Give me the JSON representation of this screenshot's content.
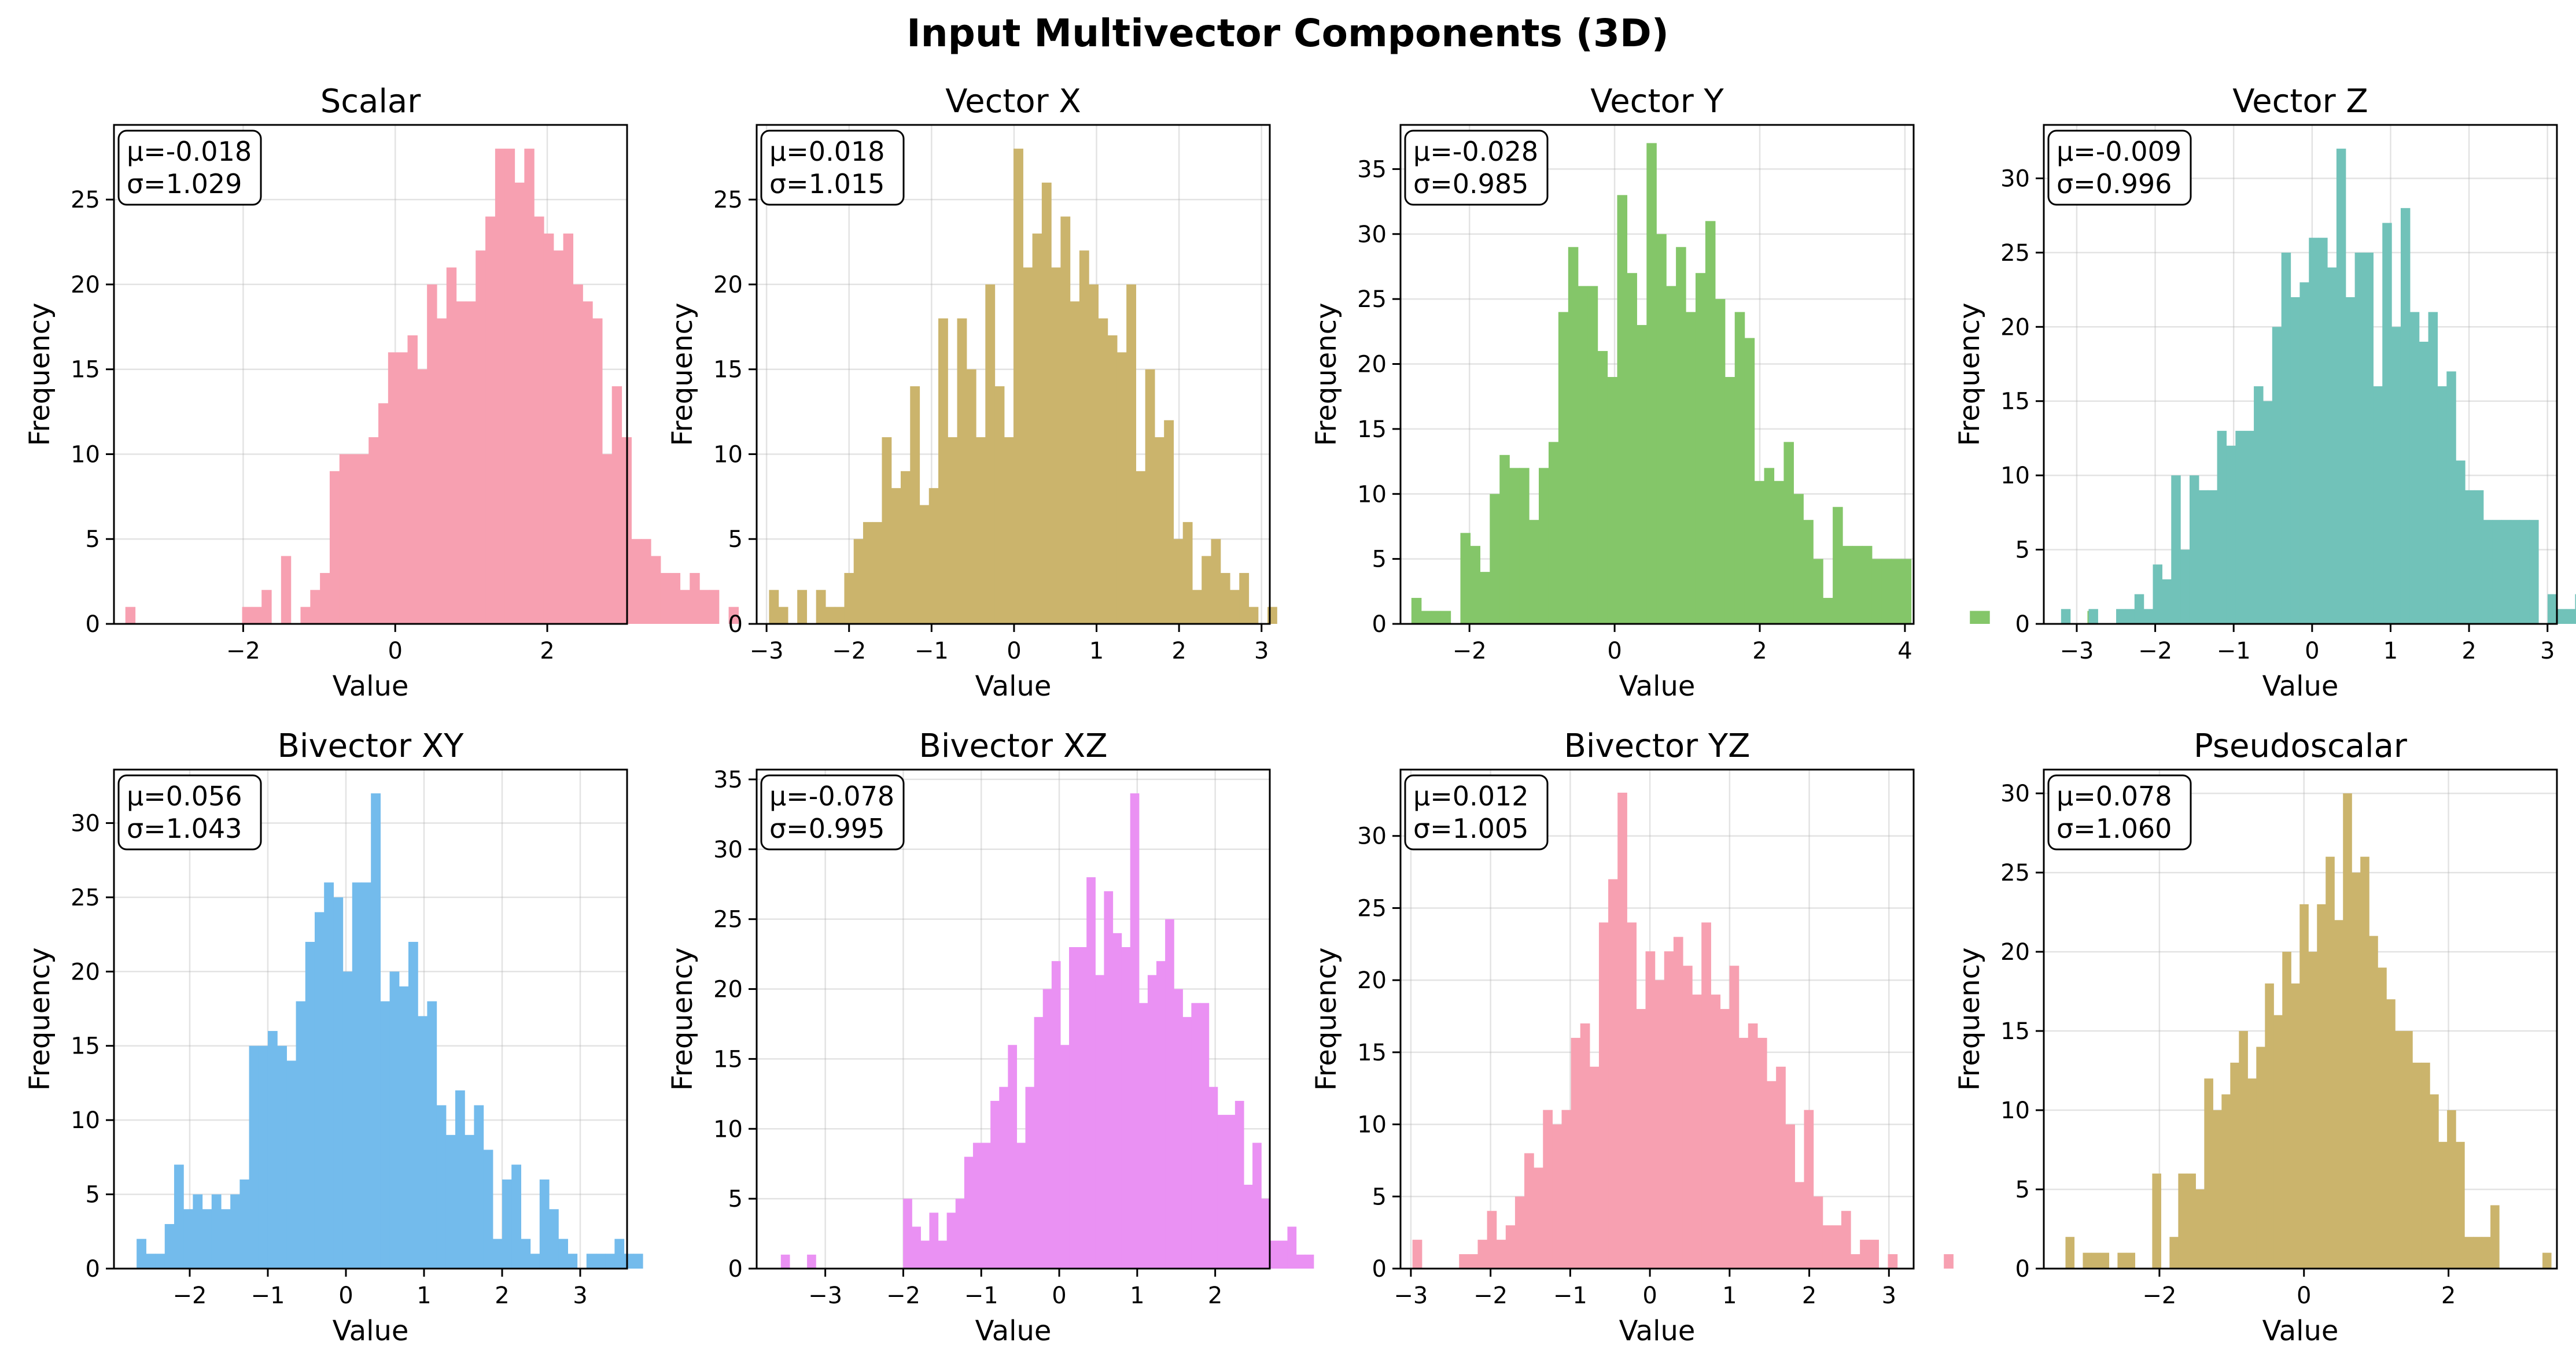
{
  "figure_title": "Input Multivector Components (3D)",
  "chart_data": [
    {
      "type": "bar",
      "title": "Scalar",
      "xlabel": "Value",
      "ylabel": "Frequency",
      "color": "#f7a0b1",
      "stats": {
        "mean": "μ=-0.018",
        "std": "σ=1.029"
      },
      "xlim": [
        -3.7,
        3.05
      ],
      "ylim": [
        0,
        29.4
      ],
      "xticks": [
        -2,
        0,
        2
      ],
      "yticks": [
        0,
        5,
        10,
        15,
        20,
        25
      ],
      "bin_start": -3.55,
      "bin_width": 0.128,
      "values": [
        1,
        0,
        0,
        0,
        0,
        0,
        0,
        0,
        0,
        0,
        0,
        0,
        1,
        1,
        2,
        0,
        4,
        0,
        1,
        2,
        3,
        9,
        10,
        10,
        10,
        11,
        13,
        16,
        16,
        17,
        15,
        20,
        18,
        21,
        19,
        19,
        22,
        24,
        28,
        28,
        26,
        28,
        24,
        23,
        22,
        23,
        20,
        19,
        18,
        10,
        14,
        11,
        5,
        5,
        4,
        3,
        3,
        2,
        3,
        2,
        2,
        0,
        1,
        0,
        0,
        0
      ]
    },
    {
      "type": "bar",
      "title": "Vector X",
      "xlabel": "Value",
      "ylabel": "Frequency",
      "color": "#cbb46c",
      "stats": {
        "mean": "μ=0.018",
        "std": "σ=1.015"
      },
      "xlim": [
        -3.12,
        3.1
      ],
      "ylim": [
        0,
        29.4
      ],
      "xticks": [
        -3,
        -2,
        -1,
        0,
        1,
        2,
        3
      ],
      "yticks": [
        0,
        5,
        10,
        15,
        20,
        25
      ],
      "bin_start": -2.97,
      "bin_width": 0.114,
      "values": [
        2,
        1,
        0,
        2,
        0,
        2,
        1,
        1,
        3,
        5,
        6,
        6,
        11,
        8,
        9,
        14,
        7,
        8,
        18,
        11,
        18,
        15,
        11,
        20,
        14,
        11,
        28,
        21,
        23,
        26,
        21,
        24,
        19,
        22,
        20,
        18,
        17,
        16,
        20,
        9,
        15,
        11,
        12,
        5,
        6,
        2,
        4,
        5,
        3,
        2,
        3,
        1,
        0,
        1
      ]
    },
    {
      "type": "bar",
      "title": "Vector Y",
      "xlabel": "Value",
      "ylabel": "Frequency",
      "color": "#84c669",
      "stats": {
        "mean": "μ=-0.028",
        "std": "σ=0.985"
      },
      "xlim": [
        -2.95,
        4.12
      ],
      "ylim": [
        0,
        38.4
      ],
      "xticks": [
        -2,
        0,
        2,
        4
      ],
      "yticks": [
        0,
        5,
        10,
        15,
        20,
        25,
        30,
        35
      ],
      "bin_start": -2.8,
      "bin_width": 0.135,
      "values": [
        2,
        1,
        1,
        1,
        0,
        7,
        6,
        4,
        10,
        13,
        12,
        12,
        8,
        12,
        14,
        24,
        29,
        26,
        26,
        21,
        19,
        33,
        27,
        23,
        37,
        30,
        26,
        29,
        24,
        27,
        31,
        25,
        19,
        24,
        22,
        11,
        12,
        11,
        14,
        10,
        8,
        5,
        2,
        9,
        6,
        6,
        6,
        5,
        5,
        5,
        5,
        0,
        0,
        0,
        0,
        0,
        0,
        1,
        1,
        0,
        0,
        0,
        0,
        0,
        0,
        0,
        0,
        0,
        0,
        1,
        0
      ]
    },
    {
      "type": "bar",
      "title": "Vector Z",
      "xlabel": "Value",
      "ylabel": "Frequency",
      "color": "#71c2b9",
      "stats": {
        "mean": "μ=-0.009",
        "std": "σ=0.996"
      },
      "xlim": [
        -3.42,
        3.12
      ],
      "ylim": [
        0,
        33.6
      ],
      "xticks": [
        -3,
        -2,
        -1,
        0,
        1,
        2,
        3
      ],
      "yticks": [
        0,
        5,
        10,
        15,
        20,
        25,
        30
      ],
      "bin_start": -3.2,
      "bin_width": 0.117,
      "values": [
        1,
        0,
        0,
        1,
        0,
        0,
        1,
        1,
        2,
        1,
        4,
        3,
        10,
        5,
        10,
        9,
        9,
        13,
        12,
        13,
        13,
        16,
        15,
        20,
        25,
        22,
        23,
        26,
        26,
        24,
        32,
        22,
        25,
        25,
        16,
        27,
        20,
        28,
        21,
        19,
        21,
        16,
        17,
        11,
        9,
        9,
        7,
        7,
        7,
        7,
        7,
        7,
        0,
        2,
        1,
        1,
        2,
        2,
        1,
        1
      ]
    },
    {
      "type": "bar",
      "title": "Bivector XY",
      "xlabel": "Value",
      "ylabel": "Frequency",
      "color": "#73bbec",
      "stats": {
        "mean": "μ=0.056",
        "std": "σ=1.043"
      },
      "xlim": [
        -2.97,
        3.6
      ],
      "ylim": [
        0,
        33.6
      ],
      "xticks": [
        -2,
        -1,
        0,
        1,
        2,
        3
      ],
      "yticks": [
        0,
        5,
        10,
        15,
        20,
        25,
        30
      ],
      "bin_start": -2.68,
      "bin_width": 0.12,
      "values": [
        2,
        1,
        1,
        3,
        7,
        4,
        5,
        4,
        5,
        4,
        5,
        6,
        15,
        15,
        16,
        15,
        14,
        18,
        22,
        24,
        26,
        25,
        20,
        26,
        26,
        32,
        18,
        20,
        19,
        22,
        17,
        18,
        11,
        9,
        12,
        9,
        11,
        8,
        2,
        6,
        7,
        2,
        1,
        6,
        4,
        2,
        1,
        0,
        1,
        1,
        1,
        2,
        1,
        1
      ]
    },
    {
      "type": "bar",
      "title": "Bivector XZ",
      "xlabel": "Value",
      "ylabel": "Frequency",
      "color": "#ea91f3",
      "stats": {
        "mean": "μ=-0.078",
        "std": "σ=0.995"
      },
      "xlim": [
        -3.88,
        2.7
      ],
      "ylim": [
        0,
        35.7
      ],
      "xticks": [
        -3,
        -2,
        -1,
        0,
        1,
        2
      ],
      "yticks": [
        0,
        5,
        10,
        15,
        20,
        25,
        30,
        35
      ],
      "bin_start": -3.57,
      "bin_width": 0.112,
      "values": [
        1,
        0,
        0,
        1,
        0,
        0,
        0,
        0,
        0,
        0,
        0,
        0,
        0,
        0,
        5,
        3,
        2,
        4,
        2,
        4,
        5,
        8,
        9,
        9,
        12,
        13,
        16,
        9,
        13,
        18,
        20,
        22,
        16,
        23,
        23,
        28,
        21,
        27,
        24,
        23,
        34,
        19,
        21,
        22,
        25,
        20,
        18,
        19,
        19,
        13,
        11,
        11,
        12,
        6,
        9,
        5,
        2,
        2,
        3,
        1,
        1
      ]
    },
    {
      "type": "bar",
      "title": "Bivector YZ",
      "xlabel": "Value",
      "ylabel": "Frequency",
      "color": "#f7a0b1",
      "stats": {
        "mean": "μ=0.012",
        "std": "σ=1.005"
      },
      "xlim": [
        -3.13,
        3.31
      ],
      "ylim": [
        0,
        34.6
      ],
      "xticks": [
        -3,
        -2,
        -1,
        0,
        1,
        2,
        3
      ],
      "yticks": [
        0,
        5,
        10,
        15,
        20,
        25,
        30
      ],
      "bin_start": -2.98,
      "bin_width": 0.117,
      "values": [
        2,
        0,
        0,
        0,
        0,
        1,
        1,
        2,
        4,
        2,
        3,
        5,
        8,
        7,
        11,
        10,
        11,
        16,
        17,
        14,
        24,
        27,
        33,
        24,
        18,
        22,
        20,
        22,
        23,
        21,
        19,
        24,
        19,
        18,
        21,
        16,
        17,
        16,
        13,
        14,
        10,
        6,
        11,
        5,
        3,
        3,
        4,
        1,
        2,
        2,
        0,
        1,
        0,
        0,
        0,
        0,
        0,
        1
      ]
    },
    {
      "type": "bar",
      "title": "Pseudoscalar",
      "xlabel": "Value",
      "ylabel": "Frequency",
      "color": "#cbb46c",
      "stats": {
        "mean": "μ=0.078",
        "std": "σ=1.060"
      },
      "xlim": [
        -3.6,
        3.5
      ],
      "ylim": [
        0,
        31.5
      ],
      "xticks": [
        -2,
        0,
        2
      ],
      "yticks": [
        0,
        5,
        10,
        15,
        20,
        25,
        30
      ],
      "bin_start": -3.3,
      "bin_width": 0.12,
      "values": [
        2,
        0,
        1,
        1,
        1,
        0,
        1,
        1,
        0,
        0,
        6,
        0,
        2,
        6,
        6,
        5,
        12,
        10,
        11,
        13,
        15,
        12,
        14,
        18,
        16,
        20,
        18,
        23,
        20,
        23,
        26,
        22,
        30,
        25,
        26,
        21,
        19,
        17,
        15,
        15,
        13,
        13,
        11,
        8,
        10,
        8,
        2,
        2,
        2,
        4,
        0,
        0,
        0,
        0,
        0,
        1
      ]
    }
  ]
}
